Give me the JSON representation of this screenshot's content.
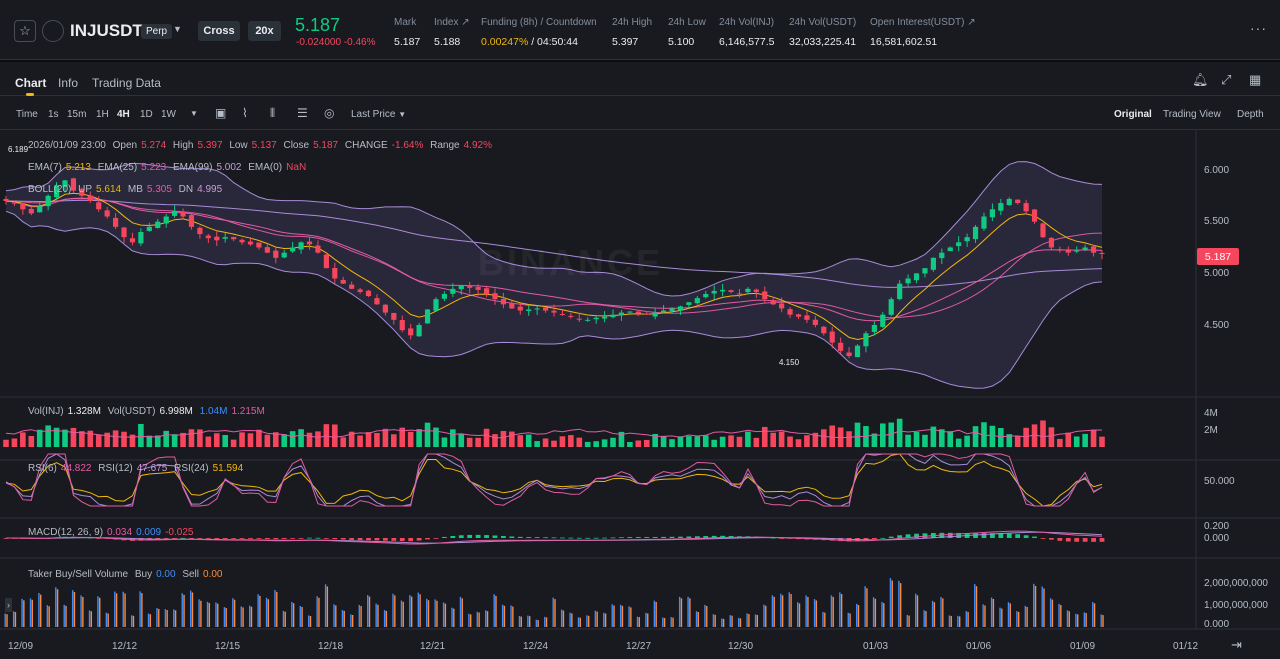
{
  "header": {
    "symbol": "INJUSDT",
    "perp_badge": "Perp",
    "margin_mode": "Cross",
    "leverage": "20x",
    "last_price": "5.187",
    "change_abs": "-0.024000",
    "change_pct": "-0.46%",
    "stats": [
      {
        "label": "Mark",
        "value": "5.187",
        "vcolor": "#eaecef"
      },
      {
        "label": "Index ↗",
        "value": "5.188",
        "vcolor": "#eaecef"
      },
      {
        "label": "Funding (8h) / Countdown",
        "value": "",
        "v1": "0.00247%",
        "v2": " / 04:50:44",
        "vcolor": "#eaecef"
      },
      {
        "label": "24h High",
        "value": "5.397",
        "vcolor": "#eaecef"
      },
      {
        "label": "24h Low",
        "value": "5.100",
        "vcolor": "#eaecef"
      },
      {
        "label": "24h Vol(INJ)",
        "value": "6,146,577.5",
        "vcolor": "#eaecef"
      },
      {
        "label": "24h Vol(USDT)",
        "value": "32,033,225.41",
        "vcolor": "#eaecef"
      },
      {
        "label": "Open Interest(USDT) ↗",
        "value": "16,581,602.51",
        "vcolor": "#eaecef"
      }
    ]
  },
  "tabs": [
    "Chart",
    "Info",
    "Trading Data"
  ],
  "toolbar": {
    "intervals": [
      "Time",
      "1s",
      "15m",
      "1H",
      "4H",
      "1D",
      "1W"
    ],
    "active": "4H",
    "price_type": "Last Price",
    "views": [
      "Original",
      "Trading View",
      "Depth"
    ]
  },
  "legend": {
    "ohlc": {
      "date": "2026/01/09 23:00",
      "open_k": "Open",
      "open": "5.274",
      "high_k": "High",
      "high": "5.397",
      "low_k": "Low",
      "low": "5.137",
      "close_k": "Close",
      "close": "5.187",
      "change_k": "CHANGE",
      "change": "-1.64%",
      "range_k": "Range",
      "range": "4.92%"
    },
    "ema": {
      "e7k": "EMA(7)",
      "e7": "5.213",
      "e25k": "EMA(25)",
      "e25": "5.223",
      "e99k": "EMA(99)",
      "e99": "5.002",
      "e0k": "EMA(0)",
      "e0": "NaN"
    },
    "boll": {
      "k": "BOLL(20)",
      "upk": "UP",
      "up": "5.614",
      "mbk": "MB",
      "mb": "5.305",
      "dnk": "DN",
      "dn": "4.995"
    },
    "vol": {
      "injk": "Vol(INJ)",
      "inj": "1.328M",
      "usdtk": "Vol(USDT)",
      "usdt": "6.998M",
      "ma1": "1.04M",
      "ma2": "1.215M"
    },
    "rsi": {
      "k6": "RSI(6)",
      "v6": "44.822",
      "k12": "RSI(12)",
      "v12": "47.675",
      "k24": "RSI(24)",
      "v24": "51.594"
    },
    "macd": {
      "k": "MACD(12, 26, 9)",
      "v1": "0.034",
      "v2": "0.009",
      "v3": "-0.025"
    },
    "taker": {
      "k": "Taker Buy/Sell Volume",
      "buyk": "Buy",
      "buy": "0.00",
      "sellk": "Sell",
      "sell": "0.00"
    }
  },
  "watermark": "BINANCE",
  "price_label": "5.187",
  "marks": {
    "high": "6.189",
    "low": "4.150"
  },
  "axes": {
    "price": [
      "6.000",
      "5.500",
      "5.000",
      "4.500"
    ],
    "vol": [
      "4M",
      "2M"
    ],
    "rsi": [
      "50.000"
    ],
    "macd": [
      "0.200",
      "0.000"
    ],
    "taker": [
      "2,000,000,000",
      "1,000,000,000",
      "0.000"
    ],
    "dates": [
      "12/09",
      "12/12",
      "12/15",
      "12/18",
      "12/21",
      "12/24",
      "12/27",
      "12/30",
      "01/03",
      "01/06",
      "01/09",
      "01/12"
    ]
  },
  "chart_data": {
    "type": "candlestick",
    "interval": "4H",
    "x_range": [
      "12/09",
      "01/12"
    ],
    "y_range": [
      4.15,
      6.19
    ],
    "close_path": [
      5.7,
      5.68,
      5.62,
      5.58,
      5.65,
      5.75,
      5.85,
      5.9,
      5.8,
      5.75,
      5.7,
      5.62,
      5.55,
      5.45,
      5.35,
      5.3,
      5.4,
      5.45,
      5.5,
      5.55,
      5.6,
      5.55,
      5.45,
      5.38,
      5.34,
      5.32,
      5.35,
      5.33,
      5.3,
      5.28,
      5.25,
      5.2,
      5.15,
      5.2,
      5.25,
      5.3,
      5.28,
      5.2,
      5.05,
      4.95,
      4.9,
      4.85,
      4.82,
      4.78,
      4.7,
      4.62,
      4.55,
      4.45,
      4.4,
      4.5,
      4.65,
      4.75,
      4.8,
      4.85,
      4.88,
      4.86,
      4.84,
      4.8,
      4.75,
      4.7,
      4.66,
      4.64,
      4.65,
      4.66,
      4.64,
      4.62,
      4.6,
      4.58,
      4.56,
      4.55,
      4.57,
      4.58,
      4.6,
      4.62,
      4.63,
      4.61,
      4.6,
      4.62,
      4.64,
      4.66,
      4.68,
      4.72,
      4.76,
      4.8,
      4.83,
      4.84,
      4.82,
      4.8,
      4.85,
      4.82,
      4.75,
      4.7,
      4.66,
      4.6,
      4.58,
      4.55,
      4.5,
      4.42,
      4.33,
      4.25,
      4.2,
      4.3,
      4.42,
      4.5,
      4.6,
      4.75,
      4.9,
      4.95,
      5.0,
      5.05,
      5.15,
      5.2,
      5.25,
      5.3,
      5.35,
      5.45,
      5.55,
      5.62,
      5.68,
      5.72,
      5.68,
      5.6,
      5.5,
      5.35,
      5.25,
      5.22,
      5.2,
      5.22,
      5.25,
      5.2,
      5.19
    ]
  }
}
